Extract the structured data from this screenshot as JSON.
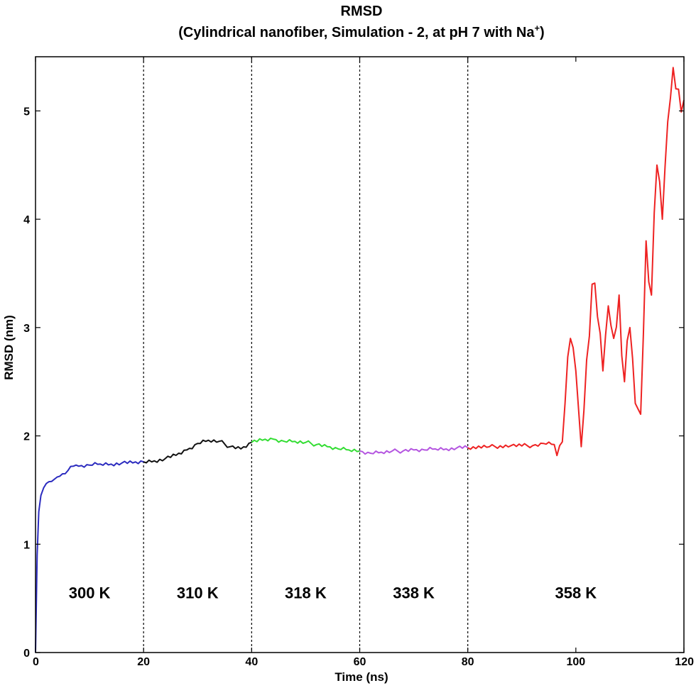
{
  "chart_data": {
    "type": "line",
    "title_line1": "RMSD",
    "title_line2_main": "(Cylindrical nanofiber, Simulation - 2, at pH 7 with Na",
    "title_line2_sup": "+",
    "title_line2_end": ")",
    "xlabel": "Time (ns)",
    "ylabel": "RMSD (nm)",
    "xlim": [
      0,
      120
    ],
    "ylim": [
      0,
      5.5
    ],
    "xticks": [
      0,
      20,
      40,
      60,
      80,
      100,
      120
    ],
    "yticks": [
      0,
      1,
      2,
      3,
      4,
      5
    ],
    "xtick_labels": [
      "0",
      "20",
      "40",
      "60",
      "80",
      "100",
      "120"
    ],
    "ytick_labels": [
      "0",
      "1",
      "2",
      "3",
      "4",
      "5"
    ],
    "grid": false,
    "dividers": [
      20,
      40,
      60,
      80
    ],
    "series": [
      {
        "color": "#2b2bbf",
        "points": [
          [
            0,
            0.0
          ],
          [
            0.3,
            0.9
          ],
          [
            0.6,
            1.3
          ],
          [
            1,
            1.45
          ],
          [
            1.5,
            1.52
          ],
          [
            2,
            1.56
          ],
          [
            3,
            1.58
          ],
          [
            4,
            1.62
          ],
          [
            5,
            1.65
          ],
          [
            6,
            1.68
          ],
          [
            7,
            1.72
          ],
          [
            8,
            1.72
          ],
          [
            10,
            1.73
          ],
          [
            12,
            1.74
          ],
          [
            14,
            1.74
          ],
          [
            16,
            1.75
          ],
          [
            18,
            1.75
          ],
          [
            20,
            1.76
          ]
        ]
      },
      {
        "color": "#111111",
        "points": [
          [
            20,
            1.76
          ],
          [
            22,
            1.77
          ],
          [
            24,
            1.79
          ],
          [
            26,
            1.82
          ],
          [
            28,
            1.87
          ],
          [
            30,
            1.93
          ],
          [
            32,
            1.96
          ],
          [
            34,
            1.95
          ],
          [
            36,
            1.9
          ],
          [
            38,
            1.88
          ],
          [
            40,
            1.94
          ]
        ]
      },
      {
        "color": "#33dd33",
        "points": [
          [
            40,
            1.94
          ],
          [
            42,
            1.96
          ],
          [
            44,
            1.97
          ],
          [
            46,
            1.95
          ],
          [
            48,
            1.95
          ],
          [
            50,
            1.94
          ],
          [
            52,
            1.92
          ],
          [
            54,
            1.9
          ],
          [
            56,
            1.88
          ],
          [
            58,
            1.87
          ],
          [
            60,
            1.86
          ]
        ]
      },
      {
        "color": "#b455e0",
        "points": [
          [
            60,
            1.86
          ],
          [
            62,
            1.84
          ],
          [
            64,
            1.85
          ],
          [
            66,
            1.86
          ],
          [
            68,
            1.86
          ],
          [
            70,
            1.87
          ],
          [
            72,
            1.87
          ],
          [
            74,
            1.88
          ],
          [
            76,
            1.88
          ],
          [
            78,
            1.89
          ],
          [
            80,
            1.89
          ]
        ]
      },
      {
        "color": "#ee2222",
        "points": [
          [
            80,
            1.89
          ],
          [
            84,
            1.9
          ],
          [
            88,
            1.91
          ],
          [
            92,
            1.91
          ],
          [
            94,
            1.93
          ],
          [
            96,
            1.92
          ],
          [
            97,
            1.91
          ],
          [
            98,
            2.3
          ],
          [
            99,
            2.9
          ],
          [
            100,
            2.6
          ],
          [
            101,
            1.9
          ],
          [
            102,
            2.7
          ],
          [
            103,
            3.4
          ],
          [
            104,
            3.1
          ],
          [
            105,
            2.6
          ],
          [
            106,
            3.2
          ],
          [
            107,
            2.9
          ],
          [
            108,
            3.3
          ],
          [
            109,
            2.5
          ],
          [
            110,
            3.0
          ],
          [
            111,
            2.3
          ],
          [
            112,
            2.2
          ],
          [
            113,
            3.8
          ],
          [
            114,
            3.3
          ],
          [
            115,
            4.5
          ],
          [
            116,
            4.0
          ],
          [
            117,
            4.9
          ],
          [
            118,
            5.4
          ],
          [
            119,
            5.2
          ],
          [
            120,
            5.1
          ]
        ]
      }
    ],
    "annotations": [
      {
        "x": 10,
        "y": 0.5,
        "text": "300 K"
      },
      {
        "x": 30,
        "y": 0.5,
        "text": "310 K"
      },
      {
        "x": 50,
        "y": 0.5,
        "text": "318 K"
      },
      {
        "x": 70,
        "y": 0.5,
        "text": "338 K"
      },
      {
        "x": 100,
        "y": 0.5,
        "text": "358 K"
      }
    ]
  }
}
